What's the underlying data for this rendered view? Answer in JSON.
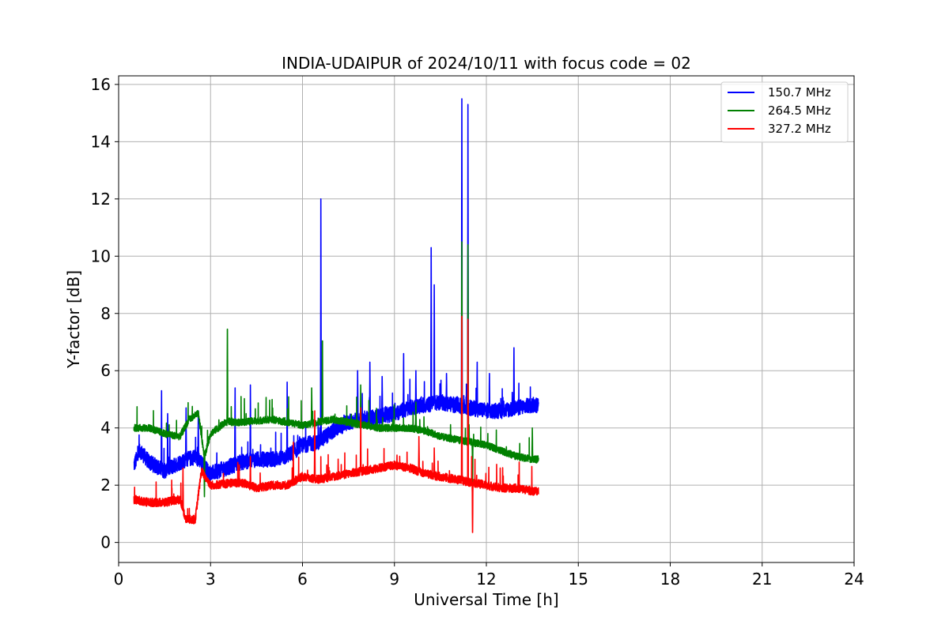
{
  "chart_data": {
    "type": "line",
    "title": "INDIA-UDAIPUR of 2024/10/11 with focus code = 02",
    "xlabel": "Universal Time [h]",
    "ylabel": "Y-factor [dB]",
    "xlim": [
      0,
      24
    ],
    "ylim": [
      -0.7,
      16.3
    ],
    "xticks": [
      0,
      3,
      6,
      9,
      12,
      15,
      18,
      21,
      24
    ],
    "yticks": [
      0,
      2,
      4,
      6,
      8,
      10,
      12,
      14,
      16
    ],
    "grid": true,
    "legend_position": "top-right",
    "series": [
      {
        "name": "150.7 MHz",
        "color": "#0000ff",
        "baseline": [
          [
            0.5,
            2.7
          ],
          [
            0.7,
            3.2
          ],
          [
            1.0,
            2.8
          ],
          [
            1.5,
            2.5
          ],
          [
            2.0,
            2.8
          ],
          [
            2.5,
            3.0
          ],
          [
            3.0,
            2.4
          ],
          [
            3.5,
            2.6
          ],
          [
            4.0,
            2.8
          ],
          [
            4.5,
            2.9
          ],
          [
            5.0,
            2.9
          ],
          [
            5.5,
            3.0
          ],
          [
            6.0,
            3.4
          ],
          [
            6.5,
            3.5
          ],
          [
            7.0,
            3.9
          ],
          [
            7.5,
            4.2
          ],
          [
            8.0,
            4.3
          ],
          [
            8.5,
            4.4
          ],
          [
            9.0,
            4.5
          ],
          [
            9.5,
            4.7
          ],
          [
            10.0,
            4.8
          ],
          [
            10.5,
            4.9
          ],
          [
            11.0,
            4.8
          ],
          [
            11.5,
            4.7
          ],
          [
            12.0,
            4.6
          ],
          [
            12.5,
            4.6
          ],
          [
            13.0,
            4.7
          ],
          [
            13.5,
            4.8
          ],
          [
            13.7,
            4.8
          ]
        ],
        "spikes": [
          [
            1.4,
            5.3
          ],
          [
            1.6,
            4.5
          ],
          [
            2.2,
            4.7
          ],
          [
            2.6,
            4.6
          ],
          [
            3.8,
            5.4
          ],
          [
            4.3,
            5.5
          ],
          [
            5.5,
            5.6
          ],
          [
            6.6,
            12.0
          ],
          [
            7.8,
            6.0
          ],
          [
            8.2,
            6.3
          ],
          [
            8.6,
            5.8
          ],
          [
            9.3,
            6.6
          ],
          [
            9.7,
            6.0
          ],
          [
            10.2,
            10.3
          ],
          [
            10.3,
            9.0
          ],
          [
            10.7,
            5.9
          ],
          [
            11.2,
            15.5
          ],
          [
            11.4,
            15.3
          ],
          [
            11.7,
            6.3
          ],
          [
            12.1,
            5.9
          ],
          [
            12.9,
            6.8
          ]
        ]
      },
      {
        "name": "264.5 MHz",
        "color": "#008000",
        "baseline": [
          [
            0.5,
            4.0
          ],
          [
            1.0,
            4.0
          ],
          [
            1.5,
            3.8
          ],
          [
            2.0,
            3.7
          ],
          [
            2.3,
            4.3
          ],
          [
            2.6,
            4.5
          ],
          [
            2.8,
            3.0
          ],
          [
            3.0,
            3.8
          ],
          [
            3.5,
            4.2
          ],
          [
            4.0,
            4.2
          ],
          [
            5.0,
            4.3
          ],
          [
            5.5,
            4.2
          ],
          [
            6.0,
            4.1
          ],
          [
            6.5,
            4.2
          ],
          [
            7.0,
            4.3
          ],
          [
            7.5,
            4.2
          ],
          [
            8.0,
            4.1
          ],
          [
            8.5,
            4.0
          ],
          [
            9.0,
            4.0
          ],
          [
            9.5,
            4.0
          ],
          [
            10.0,
            3.9
          ],
          [
            10.5,
            3.7
          ],
          [
            11.0,
            3.6
          ],
          [
            11.5,
            3.5
          ],
          [
            12.0,
            3.4
          ],
          [
            12.5,
            3.2
          ],
          [
            13.0,
            3.0
          ],
          [
            13.5,
            2.9
          ],
          [
            13.7,
            2.9
          ]
        ],
        "spikes": [
          [
            2.8,
            1.6
          ],
          [
            3.55,
            8.1
          ],
          [
            6.3,
            5.4
          ],
          [
            6.65,
            7.6
          ],
          [
            7.9,
            5.5
          ],
          [
            9.7,
            4.9
          ],
          [
            11.2,
            10.5
          ],
          [
            11.4,
            10.4
          ],
          [
            11.55,
            1.8
          ],
          [
            13.5,
            4.0
          ]
        ]
      },
      {
        "name": "327.2 MHz",
        "color": "#ff0000",
        "baseline": [
          [
            0.5,
            1.5
          ],
          [
            1.0,
            1.4
          ],
          [
            1.5,
            1.4
          ],
          [
            2.0,
            1.5
          ],
          [
            2.2,
            0.8
          ],
          [
            2.5,
            0.8
          ],
          [
            2.7,
            2.5
          ],
          [
            3.0,
            2.0
          ],
          [
            4.0,
            2.1
          ],
          [
            4.5,
            1.9
          ],
          [
            5.0,
            2.0
          ],
          [
            5.5,
            2.0
          ],
          [
            6.0,
            2.3
          ],
          [
            6.5,
            2.2
          ],
          [
            7.0,
            2.3
          ],
          [
            7.5,
            2.4
          ],
          [
            8.0,
            2.5
          ],
          [
            8.5,
            2.6
          ],
          [
            9.0,
            2.7
          ],
          [
            9.5,
            2.6
          ],
          [
            10.0,
            2.4
          ],
          [
            10.5,
            2.3
          ],
          [
            11.0,
            2.2
          ],
          [
            11.5,
            2.1
          ],
          [
            12.0,
            2.0
          ],
          [
            12.5,
            1.9
          ],
          [
            13.0,
            1.9
          ],
          [
            13.5,
            1.8
          ],
          [
            13.7,
            1.8
          ]
        ],
        "spikes": [
          [
            2.1,
            2.6
          ],
          [
            4.3,
            3.0
          ],
          [
            5.7,
            3.5
          ],
          [
            6.4,
            4.6
          ],
          [
            7.9,
            4.7
          ],
          [
            9.8,
            3.7
          ],
          [
            10.3,
            3.3
          ],
          [
            11.2,
            7.9
          ],
          [
            11.4,
            7.8
          ],
          [
            11.55,
            0.0
          ]
        ]
      }
    ]
  }
}
